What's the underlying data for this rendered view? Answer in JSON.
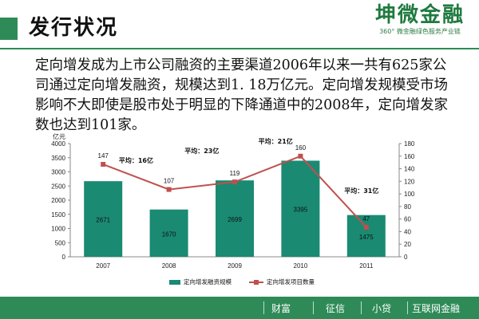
{
  "page": {
    "title": "发行状况",
    "intro": "定向增发成为上市公司融资的主要渠道2006年以来一共有625家公司通过定向增发融资，规模达到1. 18万亿元。定向增发规模受市场影响不大即使是股市处于明显的下降通道中的2008年，定向增发家数也达到101家。"
  },
  "logo": {
    "main": "坤微金融",
    "sub": "360° 微金融绿色服务产业链"
  },
  "footer": {
    "items": [
      "财富",
      "征信",
      "小贷",
      "互联网金融"
    ]
  },
  "colors": {
    "accent": "#2e8b57",
    "bar": "#1a8a73",
    "line": "#c0504d"
  },
  "chart_data": {
    "type": "bar",
    "categories": [
      "2007",
      "2008",
      "2009",
      "2010",
      "2011"
    ],
    "ylabel": "亿元",
    "ylim": [
      0,
      4000
    ],
    "y2lim": [
      0,
      180
    ],
    "yticks": [
      "0",
      "500",
      "1000",
      "1500",
      "2000",
      "2500",
      "3000",
      "3500",
      "4000"
    ],
    "y2ticks": [
      "0",
      "20",
      "40",
      "60",
      "80",
      "100",
      "120",
      "140",
      "160",
      "180"
    ],
    "series": [
      {
        "name": "定向增发融资规模",
        "kind": "bar",
        "axis": "left",
        "values": [
          2671,
          1670,
          2699,
          3395,
          1475
        ]
      },
      {
        "name": "定向增发项目数量",
        "kind": "line",
        "axis": "right",
        "values": [
          147,
          107,
          119,
          160,
          47
        ]
      }
    ],
    "annotations": [
      "平均：16亿",
      "平均：23亿",
      "平均：21亿",
      "平均：31亿"
    ],
    "grid": false,
    "legend": "bottom"
  }
}
